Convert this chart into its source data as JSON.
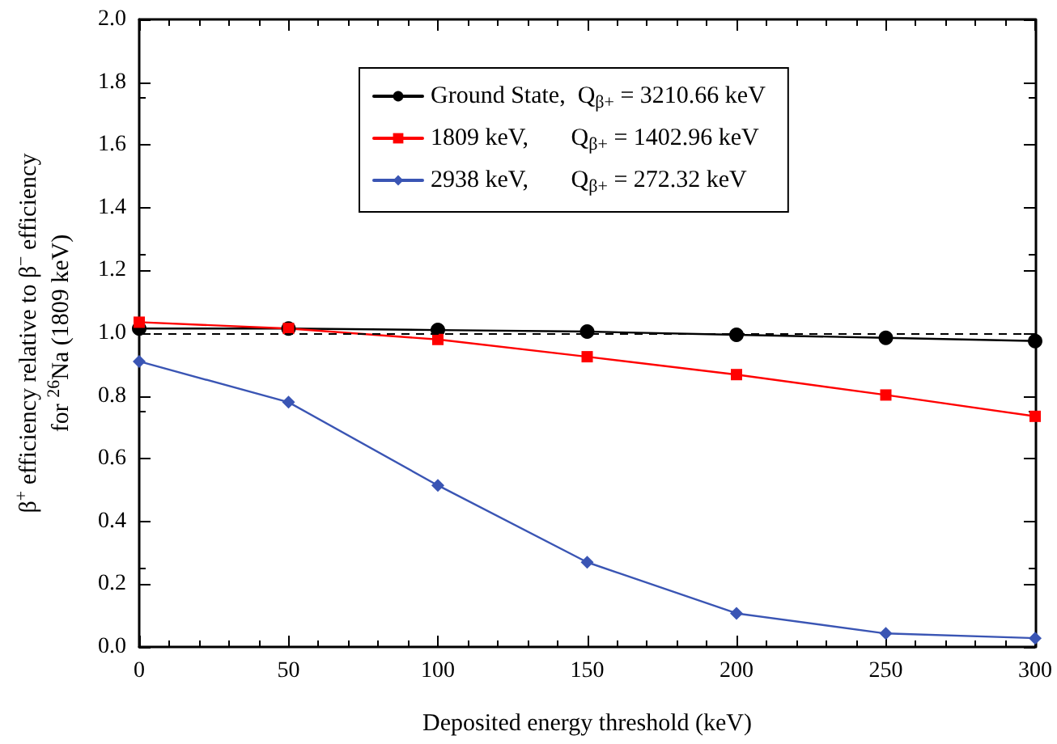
{
  "chart_data": {
    "type": "line",
    "xlabel": "Deposited energy threshold (keV)",
    "ylabel": "β$^{+}$ efficiency relative to β$^{−}$ efficiency\nfor $^{26}$Na (1809 keV)",
    "x": [
      0,
      50,
      100,
      150,
      200,
      250,
      300
    ],
    "xlim": [
      0,
      300
    ],
    "xticks": [
      0,
      50,
      100,
      150,
      200,
      250,
      300
    ],
    "ylim": [
      0,
      2.0
    ],
    "yticks": [
      {
        "value": 0,
        "label": "0.0"
      },
      {
        "value": 0.2,
        "label": "0.2"
      },
      {
        "value": 0.4,
        "label": "0.4"
      },
      {
        "value": 0.6,
        "label": "0.6"
      },
      {
        "value": 0.8,
        "label": "0.8"
      },
      {
        "value": 1.0,
        "label": "1.0"
      },
      {
        "value": 1.2,
        "label": "1.2"
      },
      {
        "value": 1.4,
        "label": "1.4"
      },
      {
        "value": 1.6,
        "label": "1.6"
      },
      {
        "value": 1.8,
        "label": "1.8"
      },
      {
        "value": 2.0,
        "label": "2.0"
      }
    ],
    "series": [
      {
        "name": "Ground State,  Q$_{β+}$ = 3210.66 keV",
        "color": "#000000",
        "marker": "circle",
        "values": [
          1.015,
          1.015,
          1.01,
          1.005,
          0.995,
          0.985,
          0.975
        ]
      },
      {
        "name": "1809 keV,       Q$_{β+}$ = 1402.96 keV",
        "color": "#ff0000",
        "marker": "square",
        "values": [
          1.035,
          1.015,
          0.98,
          0.925,
          0.868,
          0.803,
          0.735
        ]
      },
      {
        "name": "2938 keV,       Q$_{β+}$ = 272.32 keV",
        "color": "#3a55b4",
        "marker": "diamond",
        "values": [
          0.91,
          0.78,
          0.515,
          0.27,
          0.107,
          0.043,
          0.028
        ]
      }
    ],
    "ref_lines": [
      {
        "axis": "y",
        "value": 1.0,
        "color": "#000000",
        "line_style": "dashed"
      }
    ],
    "legend": "top",
    "grid": false
  }
}
